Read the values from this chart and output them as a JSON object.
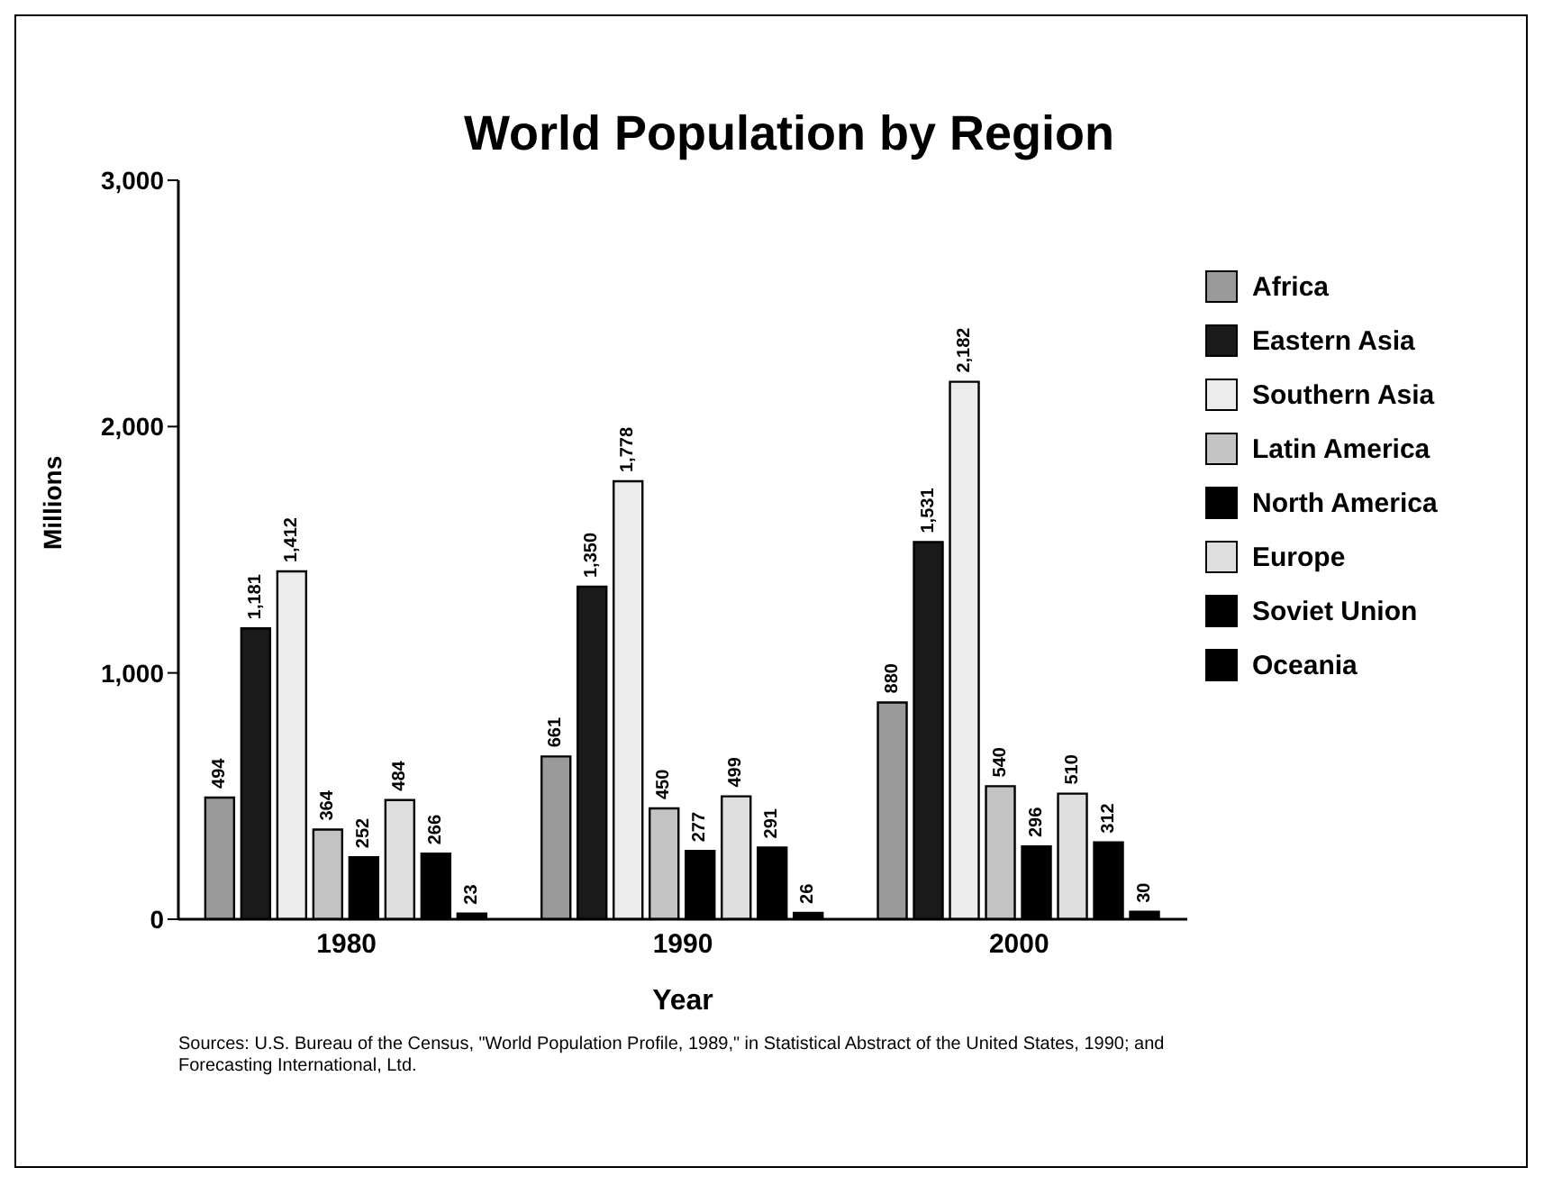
{
  "chart_data": {
    "type": "bar",
    "title": "World Population by Region",
    "xlabel": "Year",
    "ylabel": "Millions",
    "categories": [
      "1980",
      "1990",
      "2000"
    ],
    "series": [
      {
        "name": "Africa",
        "color": "#9a9a9a",
        "values": [
          494,
          661,
          880
        ],
        "value_labels": [
          "494",
          "661",
          "880"
        ]
      },
      {
        "name": "Eastern Asia",
        "color": "#1a1a1a",
        "values": [
          1181,
          1350,
          1531
        ],
        "value_labels": [
          "1,181",
          "1,350",
          "1,531"
        ]
      },
      {
        "name": "Southern Asia",
        "color": "#ececec",
        "values": [
          1412,
          1778,
          2182
        ],
        "value_labels": [
          "1,412",
          "1,778",
          "2,182"
        ]
      },
      {
        "name": "Latin America",
        "color": "#c4c4c4",
        "values": [
          364,
          450,
          540
        ],
        "value_labels": [
          "364",
          "450",
          "540"
        ]
      },
      {
        "name": "North America",
        "color": "#000000",
        "values": [
          252,
          277,
          296
        ],
        "value_labels": [
          "252",
          "277",
          "296"
        ]
      },
      {
        "name": "Europe",
        "color": "#dedede",
        "values": [
          484,
          499,
          510
        ],
        "value_labels": [
          "484",
          "499",
          "510"
        ]
      },
      {
        "name": "Soviet Union",
        "color": "#000000",
        "values": [
          266,
          291,
          312
        ],
        "value_labels": [
          "266",
          "291",
          "312"
        ]
      },
      {
        "name": "Oceania",
        "color": "#000000",
        "values": [
          23,
          26,
          30
        ],
        "value_labels": [
          "23",
          "26",
          "30"
        ]
      }
    ],
    "ylim": [
      0,
      3000
    ],
    "yticks": [
      {
        "value": 0,
        "label": "0"
      },
      {
        "value": 1000,
        "label": "1,000"
      },
      {
        "value": 2000,
        "label": "2,000"
      },
      {
        "value": 3000,
        "label": "3,000"
      }
    ],
    "grid": false,
    "legend": "right",
    "annotations": [
      "Sources: U.S. Bureau of the Census, \"World Population Profile, 1989,\" in Statistical Abstract of the United States, 1990; and Forecasting International, Ltd."
    ]
  }
}
